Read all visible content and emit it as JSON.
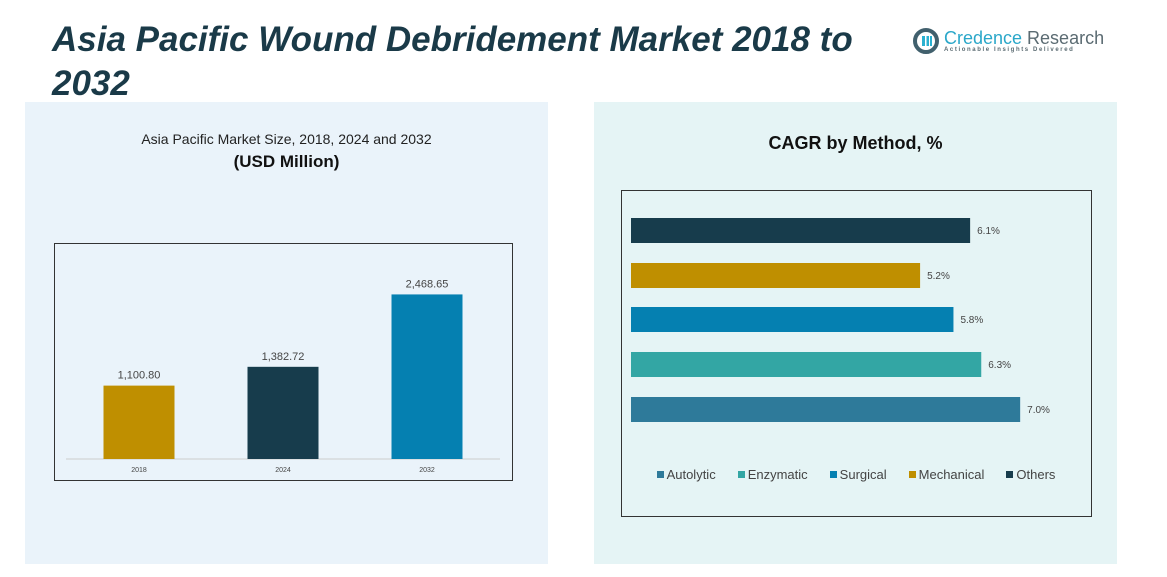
{
  "header": {
    "title": "Asia Pacific Wound Debridement Market 2018 to 2032"
  },
  "logo": {
    "name_a": "Credence",
    "name_b": " Research",
    "tagline": "Actionable Insights Delivered"
  },
  "chart_data": [
    {
      "type": "bar",
      "title": "Asia Pacific Market Size, 2018, 2024 and 2032",
      "subtitle": "(USD Million)",
      "categories": [
        "2018",
        "2024",
        "2032"
      ],
      "values": [
        1100.8,
        1382.72,
        2468.65
      ],
      "labels": [
        "1,100.80",
        "1,382.72",
        "2,468.65"
      ],
      "colors": [
        "#bf8f00",
        "#173c4c",
        "#0580b1"
      ],
      "ylim": [
        0,
        3000
      ],
      "grid": false
    },
    {
      "type": "bar",
      "orientation": "horizontal",
      "title": "CAGR by Method, %",
      "categories": [
        "Others",
        "Mechanical",
        "Surgical",
        "Enzymatic",
        "Autolytic"
      ],
      "values": [
        6.1,
        5.2,
        5.8,
        6.3,
        7.0
      ],
      "labels": [
        "6.1%",
        "5.2%",
        "5.8%",
        "6.3%",
        "7.0%"
      ],
      "colors": [
        "#173c4c",
        "#bf8f00",
        "#0580b1",
        "#33a6a4",
        "#2e7a9a"
      ],
      "xlim": [
        0,
        8.4
      ],
      "legend_position": "bottom",
      "legend": [
        {
          "name": "Autolytic",
          "color": "#2e7a9a"
        },
        {
          "name": "Enzymatic",
          "color": "#33a6a4"
        },
        {
          "name": "Surgical",
          "color": "#0580b1"
        },
        {
          "name": "Mechanical",
          "color": "#bf8f00"
        },
        {
          "name": "Others",
          "color": "#173c4c"
        }
      ]
    }
  ]
}
